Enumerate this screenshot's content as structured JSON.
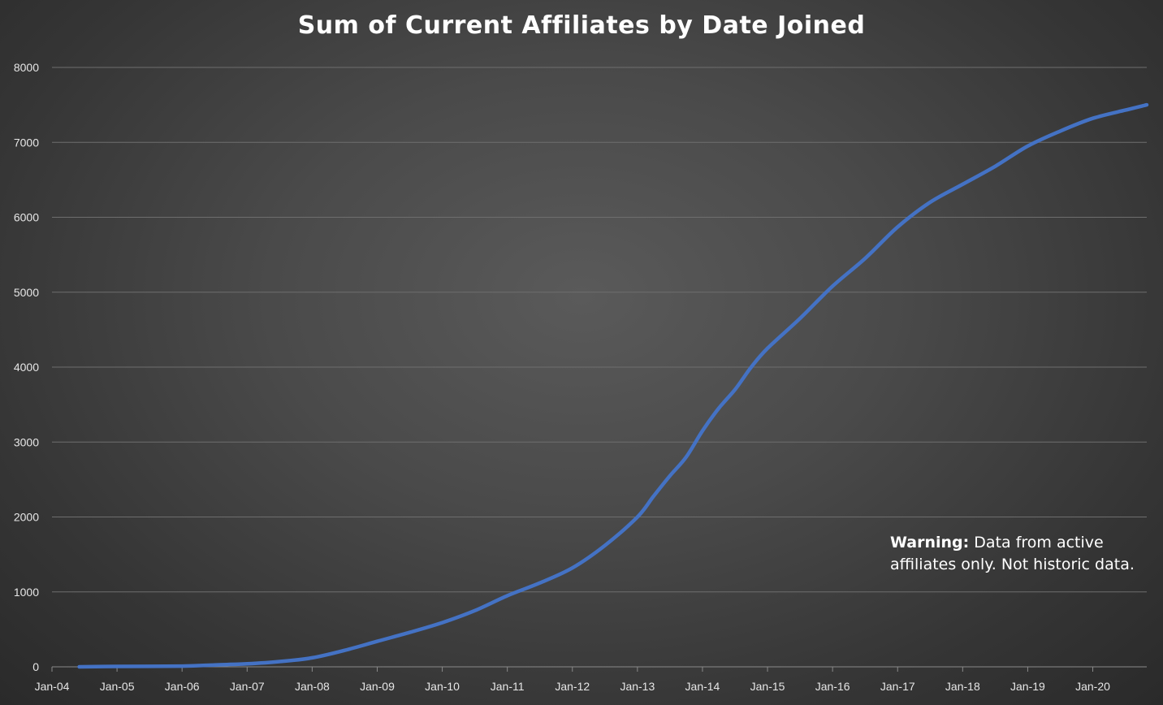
{
  "chart_data": {
    "type": "line",
    "title": "Sum of Current Affiliates by Date Joined",
    "xlabel": "",
    "ylabel": "",
    "ylim": [
      0,
      8000
    ],
    "xlim": [
      2004.0,
      2020.83
    ],
    "yticks": [
      0,
      1000,
      2000,
      3000,
      4000,
      5000,
      6000,
      7000,
      8000
    ],
    "xticks": [
      {
        "label": "Jan-04",
        "x": 2004
      },
      {
        "label": "Jan-05",
        "x": 2005
      },
      {
        "label": "Jan-06",
        "x": 2006
      },
      {
        "label": "Jan-07",
        "x": 2007
      },
      {
        "label": "Jan-08",
        "x": 2008
      },
      {
        "label": "Jan-09",
        "x": 2009
      },
      {
        "label": "Jan-10",
        "x": 2010
      },
      {
        "label": "Jan-11",
        "x": 2011
      },
      {
        "label": "Jan-12",
        "x": 2012
      },
      {
        "label": "Jan-13",
        "x": 2013
      },
      {
        "label": "Jan-14",
        "x": 2014
      },
      {
        "label": "Jan-15",
        "x": 2015
      },
      {
        "label": "Jan-16",
        "x": 2016
      },
      {
        "label": "Jan-17",
        "x": 2017
      },
      {
        "label": "Jan-18",
        "x": 2018
      },
      {
        "label": "Jan-19",
        "x": 2019
      },
      {
        "label": "Jan-20",
        "x": 2020
      }
    ],
    "grid": true,
    "series": [
      {
        "name": "Sum of Current Affiliates",
        "color": "#4472C4",
        "x": [
          2004.42,
          2005.0,
          2006.0,
          2006.5,
          2007.0,
          2007.5,
          2008.0,
          2008.5,
          2009.0,
          2009.5,
          2010.0,
          2010.5,
          2011.0,
          2011.5,
          2012.0,
          2012.5,
          2013.0,
          2013.25,
          2013.5,
          2013.75,
          2014.0,
          2014.25,
          2014.5,
          2014.75,
          2015.0,
          2015.5,
          2016.0,
          2016.5,
          2017.0,
          2017.5,
          2018.0,
          2018.5,
          2019.0,
          2019.5,
          2020.0,
          2020.5,
          2020.83
        ],
        "y": [
          0,
          5,
          10,
          25,
          40,
          70,
          120,
          220,
          340,
          460,
          590,
          750,
          950,
          1120,
          1320,
          1620,
          2000,
          2280,
          2550,
          2800,
          3150,
          3450,
          3700,
          4000,
          4250,
          4650,
          5080,
          5450,
          5870,
          6200,
          6440,
          6680,
          6950,
          7150,
          7320,
          7430,
          7500
        ]
      }
    ],
    "annotation": {
      "bold": "Warning:",
      "text": " Data from active affiliates only. Not historic data."
    }
  }
}
